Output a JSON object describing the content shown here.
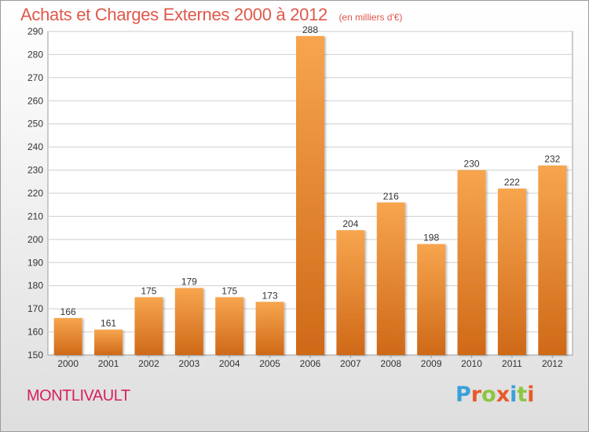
{
  "header": {
    "title": "Achats et Charges Externes 2000 à 2012",
    "unit_note": "(en milliers d'€)"
  },
  "footer": {
    "commune": "MONTLIVAULT",
    "brand": "Proxiti",
    "brand_colors": [
      "#3aa0d8",
      "#e85a2a",
      "#8cc63f",
      "#e85a2a",
      "#3aa0d8",
      "#8cc63f",
      "#e85a2a"
    ]
  },
  "colors": {
    "bar_top": "#f7a54e",
    "bar_bottom": "#cf6918",
    "title": "#e0584c",
    "commune": "#d7205f"
  },
  "chart_data": {
    "type": "bar",
    "title": "Achats et Charges Externes 2000 à 2012",
    "subtitle": "(en milliers d'€)",
    "xlabel": "",
    "ylabel": "",
    "categories": [
      "2000",
      "2001",
      "2002",
      "2003",
      "2004",
      "2005",
      "2006",
      "2007",
      "2008",
      "2009",
      "2010",
      "2011",
      "2012"
    ],
    "values": [
      166,
      161,
      175,
      179,
      175,
      173,
      288,
      204,
      216,
      198,
      230,
      222,
      232
    ],
    "ylim": [
      150,
      290
    ],
    "yticks": [
      150,
      160,
      170,
      180,
      190,
      200,
      210,
      220,
      230,
      240,
      250,
      260,
      270,
      280,
      290
    ],
    "grid": true,
    "legend": "none",
    "data_labels": true
  }
}
